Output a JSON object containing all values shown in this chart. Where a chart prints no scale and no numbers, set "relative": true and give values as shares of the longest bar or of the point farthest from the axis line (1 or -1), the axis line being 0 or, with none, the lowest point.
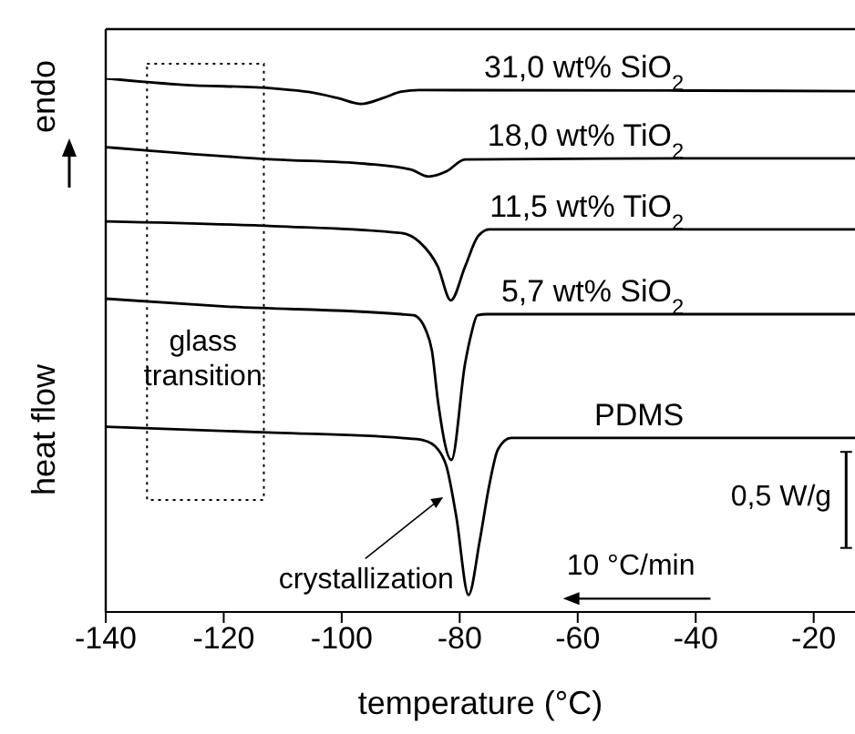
{
  "chart_data": {
    "type": "line",
    "xlabel": "temperature (°C)",
    "ylabel": "heat flow",
    "relative": true,
    "xlim": [
      -140,
      -13
    ],
    "xticks": [
      -140,
      -120,
      -100,
      -80,
      -60,
      -40,
      -20
    ],
    "tick_labels": "x",
    "grid": false,
    "legend": false,
    "marker": "none",
    "line_style": "solid",
    "annotations": [
      "endo",
      "glass transition",
      "crystallization",
      "0,5 W/g",
      "10 °C/min"
    ],
    "series": [
      {
        "name": "31,0 wt% SiO$_{2}$",
        "color": "#000000",
        "x": [
          -140,
          -127,
          -111.5,
          -105.4,
          -100.7,
          -96.7,
          -93,
          -89.9,
          -86.8,
          -42,
          -13
        ],
        "values": [
          1.0,
          0.988,
          0.981,
          0.974,
          0.963,
          0.952,
          0.963,
          0.975,
          0.978,
          0.977,
          0.976
        ]
      },
      {
        "name": "18,0 wt% TiO$_{2}$",
        "color": "#000000",
        "x": [
          -140,
          -133.2,
          -111.5,
          -96.1,
          -88.3,
          -85.3,
          -82.2,
          -79.1,
          -42,
          -13
        ],
        "values": [
          0.871,
          0.865,
          0.848,
          0.84,
          0.829,
          0.816,
          0.826,
          0.848,
          0.85,
          0.85
        ]
      },
      {
        "name": "11,5 wt% TiO$_{2}$",
        "color": "#000000",
        "x": [
          -140,
          -111.5,
          -89.9,
          -86.8,
          -83.7,
          -81.5,
          -79.1,
          -76.9,
          -75,
          -42,
          -13
        ],
        "values": [
          0.732,
          0.723,
          0.71,
          0.693,
          0.647,
          0.584,
          0.647,
          0.704,
          0.717,
          0.717,
          0.717
        ]
      },
      {
        "name": "5,7 wt% SiO$_{2}$",
        "color": "#000000",
        "x": [
          -140,
          -120.8,
          -89.9,
          -87.8,
          -85.7,
          -84.7,
          -83.7,
          -81.4,
          -79.1,
          -78,
          -77,
          -75.4,
          -42,
          -13
        ],
        "values": [
          0.587,
          0.573,
          0.558,
          0.556,
          0.527,
          0.489,
          0.396,
          0.285,
          0.465,
          0.523,
          0.556,
          0.558,
          0.558,
          0.558
        ]
      },
      {
        "name": "PDMS",
        "color": "#000000",
        "x": [
          -140,
          -111.5,
          -89.9,
          -86.2,
          -83.7,
          -82.2,
          -80.6,
          -78.5,
          -76.6,
          -75,
          -73.5,
          -71.3,
          -42,
          -13
        ],
        "values": [
          0.347,
          0.336,
          0.326,
          0.322,
          0.305,
          0.271,
          0.18,
          0.032,
          0.134,
          0.237,
          0.305,
          0.326,
          0.326,
          0.326
        ]
      }
    ]
  }
}
